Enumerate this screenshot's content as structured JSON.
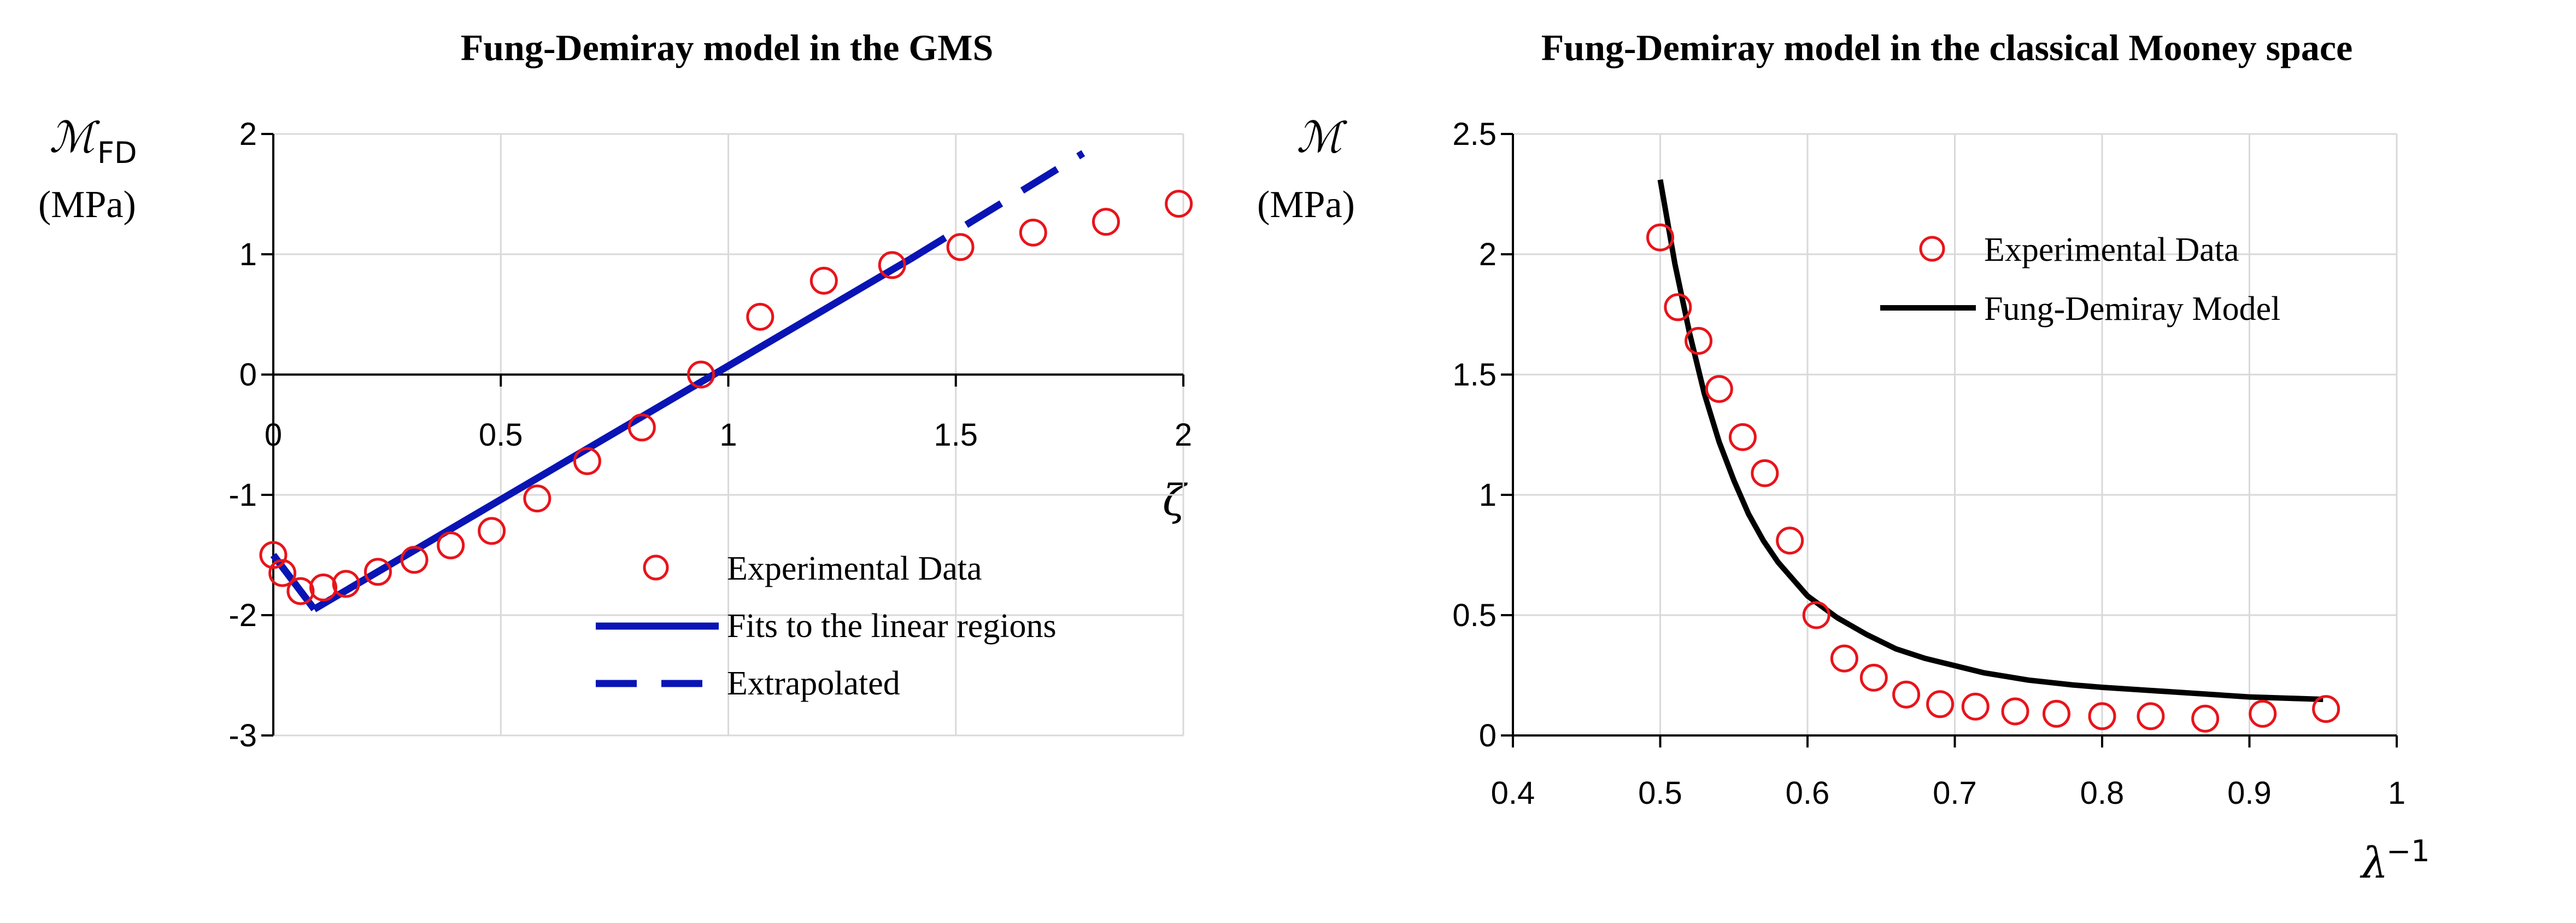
{
  "chart_data": [
    {
      "type": "scatter",
      "title": "Fung-Demiray model in the GMS",
      "ylabel_symbol": "ℳ",
      "ylabel_subscript": "FD",
      "ylabel_unit": "(MPa)",
      "xlabel": "ζ",
      "xlim": [
        0,
        2
      ],
      "ylim": [
        -3,
        2
      ],
      "x_ticks": [
        "0",
        "0.5",
        "1",
        "1.5",
        "2"
      ],
      "y_ticks": [
        "2",
        "1",
        "0",
        "-1",
        "-2",
        "-3"
      ],
      "grid": true,
      "legend_position": "center-right",
      "series": [
        {
          "name": "Experimental Data",
          "kind": "markers",
          "color": "#e8141b",
          "x": [
            0.0,
            0.02,
            0.06,
            0.11,
            0.16,
            0.23,
            0.31,
            0.39,
            0.48,
            0.58,
            0.69,
            0.81,
            0.94,
            1.07,
            1.21,
            1.36,
            1.51,
            1.67,
            1.83,
            1.99
          ],
          "y": [
            -1.5,
            -1.65,
            -1.8,
            -1.77,
            -1.74,
            -1.64,
            -1.54,
            -1.42,
            -1.3,
            -1.03,
            -0.72,
            -0.44,
            0.0,
            0.48,
            0.78,
            0.91,
            1.06,
            1.18,
            1.27,
            1.42
          ]
        },
        {
          "name": "Fits to the linear regions",
          "kind": "solid",
          "color": "#0a14b4",
          "segments": [
            {
              "x": [
                0.0,
                0.09
              ],
              "y": [
                -1.5,
                -1.95
              ]
            },
            {
              "x": [
                0.09,
                1.4
              ],
              "y": [
                -1.95,
                0.96
              ]
            }
          ]
        },
        {
          "name": "Extrapolated",
          "kind": "dashed",
          "color": "#0a14b4",
          "segments": [
            {
              "x": [
                1.4,
                1.78
              ],
              "y": [
                0.96,
                1.84
              ]
            }
          ]
        }
      ]
    },
    {
      "type": "scatter",
      "title": "Fung-Demiray model in the classical Mooney space",
      "ylabel_symbol": "ℳ",
      "ylabel_unit": "(MPa)",
      "xlabel_base": "λ",
      "xlabel_exp": "−1",
      "xlim": [
        0.4,
        1
      ],
      "ylim": [
        0,
        2.5
      ],
      "x_ticks": [
        "0.4",
        "0.5",
        "0.6",
        "0.7",
        "0.8",
        "0.9",
        "1"
      ],
      "y_ticks": [
        "2.5",
        "2",
        "1.5",
        "1",
        "0.5",
        "0"
      ],
      "grid": true,
      "legend_position": "top-right",
      "series": [
        {
          "name": "Experimental Data",
          "kind": "markers",
          "color": "#e8141b",
          "x": [
            0.5,
            0.512,
            0.526,
            0.54,
            0.556,
            0.571,
            0.588,
            0.606,
            0.625,
            0.645,
            0.667,
            0.69,
            0.714,
            0.741,
            0.769,
            0.8,
            0.833,
            0.87,
            0.909,
            0.952
          ],
          "y": [
            2.07,
            1.78,
            1.64,
            1.44,
            1.24,
            1.09,
            0.81,
            0.5,
            0.32,
            0.24,
            0.17,
            0.13,
            0.12,
            0.1,
            0.09,
            0.08,
            0.08,
            0.07,
            0.09,
            0.11
          ]
        },
        {
          "name": "Fung-Demiray Model",
          "kind": "solid",
          "color": "#000000",
          "x": [
            0.5,
            0.51,
            0.52,
            0.53,
            0.54,
            0.55,
            0.56,
            0.57,
            0.58,
            0.59,
            0.6,
            0.62,
            0.64,
            0.66,
            0.68,
            0.7,
            0.72,
            0.75,
            0.78,
            0.8,
            0.85,
            0.9,
            0.95
          ],
          "y": [
            2.31,
            1.96,
            1.67,
            1.42,
            1.22,
            1.06,
            0.92,
            0.81,
            0.72,
            0.65,
            0.58,
            0.49,
            0.42,
            0.36,
            0.32,
            0.29,
            0.26,
            0.23,
            0.21,
            0.2,
            0.18,
            0.16,
            0.15
          ]
        }
      ]
    }
  ]
}
